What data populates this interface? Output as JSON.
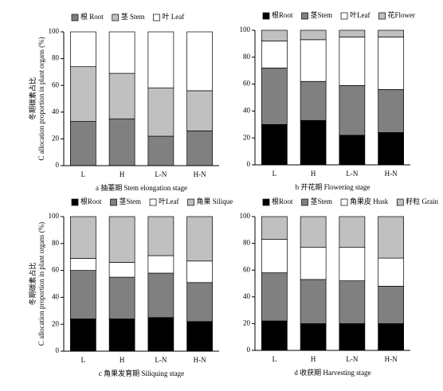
{
  "chart_data": [
    {
      "type": "bar",
      "stacked": true,
      "caption": "a 抽薹期 Stem elongation stage",
      "ylabel": [
        "冬期碳素占比",
        "C allocation proportion in plant organs (%)"
      ],
      "categories": [
        "L",
        "H",
        "L-N",
        "H-N"
      ],
      "ylim": [
        0,
        100
      ],
      "yticks": [
        0,
        20,
        40,
        60,
        80,
        100
      ],
      "series": [
        {
          "name": "根 Root",
          "color": "#808080",
          "values": [
            33,
            35,
            22,
            26
          ]
        },
        {
          "name": "茎 Stem",
          "color": "#c0c0c0",
          "values": [
            41,
            34,
            36,
            30
          ]
        },
        {
          "name": "叶 Leaf",
          "color": "#ffffff",
          "values": [
            26,
            31,
            42,
            44
          ]
        }
      ]
    },
    {
      "type": "bar",
      "stacked": true,
      "caption": "b 开花期 Flowering stage",
      "categories": [
        "L",
        "H",
        "L-N",
        "H-N"
      ],
      "ylim": [
        0,
        100
      ],
      "yticks": [
        0,
        20,
        40,
        60,
        80,
        100
      ],
      "series": [
        {
          "name": "根Root",
          "color": "#000000",
          "values": [
            30,
            33,
            22,
            24
          ]
        },
        {
          "name": "茎Stem",
          "color": "#808080",
          "values": [
            42,
            29,
            37,
            32
          ]
        },
        {
          "name": "叶Leaf",
          "color": "#ffffff",
          "values": [
            20,
            31,
            36,
            39
          ]
        },
        {
          "name": "花Flower",
          "color": "#c0c0c0",
          "values": [
            8,
            7,
            5,
            5
          ]
        }
      ]
    },
    {
      "type": "bar",
      "stacked": true,
      "caption": "c 角果发育期 Siliquing stage",
      "ylabel": [
        "冬期碳素占比",
        "C allocation proportion in plant organs (%)"
      ],
      "categories": [
        "L",
        "H",
        "L-N",
        "H-N"
      ],
      "ylim": [
        0,
        100
      ],
      "yticks": [
        0,
        20,
        40,
        60,
        80,
        100
      ],
      "series": [
        {
          "name": "根Root",
          "color": "#000000",
          "values": [
            24,
            24,
            25,
            22
          ]
        },
        {
          "name": "茎Stem",
          "color": "#808080",
          "values": [
            36,
            31,
            33,
            29
          ]
        },
        {
          "name": "叶Leaf",
          "color": "#ffffff",
          "values": [
            9,
            11,
            13,
            16
          ]
        },
        {
          "name": "角果 Silique",
          "color": "#c0c0c0",
          "values": [
            31,
            34,
            29,
            33
          ]
        }
      ]
    },
    {
      "type": "bar",
      "stacked": true,
      "caption": "d 收获期 Harvesting stage",
      "categories": [
        "L",
        "H",
        "L-N",
        "H-N"
      ],
      "ylim": [
        0,
        100
      ],
      "yticks": [
        0,
        20,
        40,
        60,
        80,
        100
      ],
      "series": [
        {
          "name": "根Root",
          "color": "#000000",
          "values": [
            22,
            20,
            20,
            20
          ]
        },
        {
          "name": "茎Stem",
          "color": "#808080",
          "values": [
            36,
            33,
            32,
            28
          ]
        },
        {
          "name": "角果皮 Husk",
          "color": "#ffffff",
          "values": [
            25,
            24,
            25,
            21
          ]
        },
        {
          "name": "籽粒 Grain",
          "color": "#c0c0c0",
          "values": [
            17,
            23,
            23,
            31
          ]
        }
      ]
    }
  ]
}
